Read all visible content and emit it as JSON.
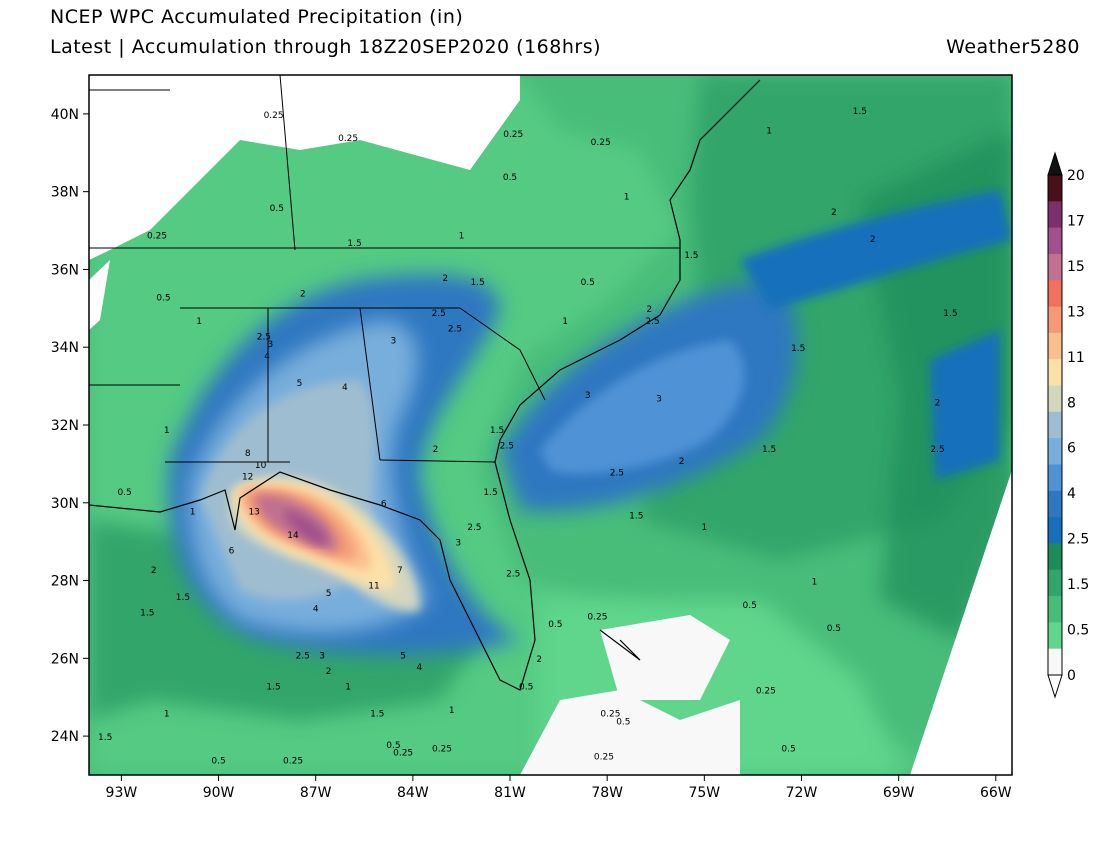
{
  "header": {
    "title": "NCEP WPC Accumulated Precipitation (in)",
    "subtitle": "Latest | Accumulation through 18Z20SEP2020 (168hrs)",
    "brand": "Weather5280"
  },
  "axes": {
    "lat_labels": [
      "40N",
      "38N",
      "36N",
      "34N",
      "32N",
      "30N",
      "28N",
      "26N",
      "24N"
    ],
    "lon_labels": [
      "93W",
      "90W",
      "87W",
      "84W",
      "81W",
      "78W",
      "75W",
      "72W",
      "69W",
      "66W"
    ]
  },
  "colorbar": {
    "ticks": [
      "20",
      "17",
      "15",
      "13",
      "11",
      "8",
      "6",
      "4",
      "2.5",
      "1.5",
      "0.5",
      "0"
    ],
    "colors": [
      "#4a0f18",
      "#7b2f6b",
      "#a0508a",
      "#c07090",
      "#f2705e",
      "#f59a74",
      "#f9c08e",
      "#fde0a8",
      "#d3d7c0",
      "#9fbdd0",
      "#78aedc",
      "#4f93d6",
      "#2f77c1",
      "#176fbb",
      "#1e8c5a",
      "#31a56b",
      "#48bd7a",
      "#5fd68c",
      "#f8f8f8"
    ]
  },
  "map_labels": [
    {
      "text": "0.25",
      "lon": -88.3,
      "lat": 39.9
    },
    {
      "text": "0.25",
      "lon": -86.0,
      "lat": 39.3
    },
    {
      "text": "0.25",
      "lon": -80.9,
      "lat": 39.4
    },
    {
      "text": "0.25",
      "lon": -78.2,
      "lat": 39.2
    },
    {
      "text": "0.25",
      "lon": -91.9,
      "lat": 36.8
    },
    {
      "text": "0.5",
      "lon": -81.0,
      "lat": 38.3
    },
    {
      "text": "0.5",
      "lon": -88.2,
      "lat": 37.5
    },
    {
      "text": "0.5",
      "lon": -91.7,
      "lat": 35.2
    },
    {
      "text": "0.5",
      "lon": -78.6,
      "lat": 35.6
    },
    {
      "text": "1",
      "lon": -77.4,
      "lat": 37.8
    },
    {
      "text": "1",
      "lon": -82.5,
      "lat": 36.8
    },
    {
      "text": "1",
      "lon": -90.6,
      "lat": 34.6
    },
    {
      "text": "1",
      "lon": -79.3,
      "lat": 34.6
    },
    {
      "text": "1",
      "lon": -73.0,
      "lat": 39.5
    },
    {
      "text": "1.5",
      "lon": -70.2,
      "lat": 40.0
    },
    {
      "text": "1.5",
      "lon": -85.8,
      "lat": 36.6
    },
    {
      "text": "1.5",
      "lon": -75.4,
      "lat": 36.3
    },
    {
      "text": "1.5",
      "lon": -82.0,
      "lat": 35.6
    },
    {
      "text": "2",
      "lon": -83.0,
      "lat": 35.7
    },
    {
      "text": "2",
      "lon": -87.4,
      "lat": 35.3
    },
    {
      "text": "2",
      "lon": -71.0,
      "lat": 37.4
    },
    {
      "text": "2",
      "lon": -69.8,
      "lat": 36.7
    },
    {
      "text": "2",
      "lon": -76.7,
      "lat": 34.9
    },
    {
      "text": "2.5",
      "lon": -76.6,
      "lat": 34.6
    },
    {
      "text": "2.5",
      "lon": -83.2,
      "lat": 34.8
    },
    {
      "text": "2.5",
      "lon": -82.7,
      "lat": 34.4
    },
    {
      "text": "2.5",
      "lon": -88.6,
      "lat": 34.2
    },
    {
      "text": "3",
      "lon": -84.6,
      "lat": 34.1
    },
    {
      "text": "3",
      "lon": -88.4,
      "lat": 34.0
    },
    {
      "text": "4",
      "lon": -88.5,
      "lat": 33.7
    },
    {
      "text": "4",
      "lon": -86.1,
      "lat": 32.9
    },
    {
      "text": "5",
      "lon": -87.5,
      "lat": 33.0
    },
    {
      "text": "3",
      "lon": -78.6,
      "lat": 32.7
    },
    {
      "text": "3",
      "lon": -76.4,
      "lat": 32.6
    },
    {
      "text": "2",
      "lon": -83.3,
      "lat": 31.3
    },
    {
      "text": "2",
      "lon": -75.7,
      "lat": 31.0
    },
    {
      "text": "2",
      "lon": -67.8,
      "lat": 32.5
    },
    {
      "text": "2.5",
      "lon": -81.1,
      "lat": 31.4
    },
    {
      "text": "2.5",
      "lon": -77.7,
      "lat": 30.7
    },
    {
      "text": "2.5",
      "lon": -67.8,
      "lat": 31.3
    },
    {
      "text": "1.5",
      "lon": -81.4,
      "lat": 31.8
    },
    {
      "text": "1.5",
      "lon": -81.6,
      "lat": 30.2
    },
    {
      "text": "1.5",
      "lon": -73.0,
      "lat": 31.3
    },
    {
      "text": "1.5",
      "lon": -72.1,
      "lat": 33.9
    },
    {
      "text": "1.5",
      "lon": -67.4,
      "lat": 34.8
    },
    {
      "text": "1.5",
      "lon": -77.1,
      "lat": 29.6
    },
    {
      "text": "1",
      "lon": -91.6,
      "lat": 31.8
    },
    {
      "text": "1",
      "lon": -90.8,
      "lat": 29.7
    },
    {
      "text": "1",
      "lon": -75.0,
      "lat": 29.3
    },
    {
      "text": "1",
      "lon": -71.6,
      "lat": 27.9
    },
    {
      "text": "0.5",
      "lon": -92.9,
      "lat": 30.2
    },
    {
      "text": "8",
      "lon": -89.1,
      "lat": 31.2
    },
    {
      "text": "10",
      "lon": -88.7,
      "lat": 30.9
    },
    {
      "text": "12",
      "lon": -89.1,
      "lat": 30.6
    },
    {
      "text": "13",
      "lon": -88.9,
      "lat": 29.7
    },
    {
      "text": "14",
      "lon": -87.7,
      "lat": 29.1
    },
    {
      "text": "11",
      "lon": -85.2,
      "lat": 27.8
    },
    {
      "text": "7",
      "lon": -84.4,
      "lat": 28.2
    },
    {
      "text": "6",
      "lon": -84.9,
      "lat": 29.9
    },
    {
      "text": "6",
      "lon": -89.6,
      "lat": 28.7
    },
    {
      "text": "5",
      "lon": -86.6,
      "lat": 27.6
    },
    {
      "text": "5",
      "lon": -84.3,
      "lat": 26.0
    },
    {
      "text": "4",
      "lon": -87.0,
      "lat": 27.2
    },
    {
      "text": "4",
      "lon": -83.8,
      "lat": 25.7
    },
    {
      "text": "3",
      "lon": -82.6,
      "lat": 28.9
    },
    {
      "text": "3",
      "lon": -86.8,
      "lat": 26.0
    },
    {
      "text": "2.5",
      "lon": -82.1,
      "lat": 29.3
    },
    {
      "text": "2.5",
      "lon": -80.9,
      "lat": 28.1
    },
    {
      "text": "2.5",
      "lon": -87.4,
      "lat": 26.0
    },
    {
      "text": "2",
      "lon": -92.0,
      "lat": 28.2
    },
    {
      "text": "2",
      "lon": -86.6,
      "lat": 25.6
    },
    {
      "text": "2",
      "lon": -80.1,
      "lat": 25.9
    },
    {
      "text": "1.5",
      "lon": -91.1,
      "lat": 27.5
    },
    {
      "text": "1.5",
      "lon": -92.2,
      "lat": 27.1
    },
    {
      "text": "1.5",
      "lon": -88.3,
      "lat": 25.2
    },
    {
      "text": "1.5",
      "lon": -85.1,
      "lat": 24.5
    },
    {
      "text": "1.5",
      "lon": -93.5,
      "lat": 23.9
    },
    {
      "text": "1",
      "lon": -86.0,
      "lat": 25.2
    },
    {
      "text": "1",
      "lon": -91.6,
      "lat": 24.5
    },
    {
      "text": "1",
      "lon": -82.8,
      "lat": 24.6
    },
    {
      "text": "0.5",
      "lon": -80.5,
      "lat": 25.2
    },
    {
      "text": "0.5",
      "lon": -84.6,
      "lat": 23.7
    },
    {
      "text": "0.5",
      "lon": -90.0,
      "lat": 23.3
    },
    {
      "text": "0.5",
      "lon": -79.6,
      "lat": 26.8
    },
    {
      "text": "0.5",
      "lon": -73.6,
      "lat": 27.3
    },
    {
      "text": "0.5",
      "lon": -71.0,
      "lat": 26.7
    },
    {
      "text": "0.5",
      "lon": -72.4,
      "lat": 23.6
    },
    {
      "text": "0.5",
      "lon": -77.5,
      "lat": 24.3
    },
    {
      "text": "0.25",
      "lon": -87.7,
      "lat": 23.3
    },
    {
      "text": "0.25",
      "lon": -84.3,
      "lat": 23.5
    },
    {
      "text": "0.25",
      "lon": -83.1,
      "lat": 23.6
    },
    {
      "text": "0.25",
      "lon": -78.3,
      "lat": 27.0
    },
    {
      "text": "0.25",
      "lon": -73.1,
      "lat": 25.1
    },
    {
      "text": "0.25",
      "lon": -77.9,
      "lat": 24.5
    },
    {
      "text": "0.25",
      "lon": -78.1,
      "lat": 23.4
    }
  ]
}
